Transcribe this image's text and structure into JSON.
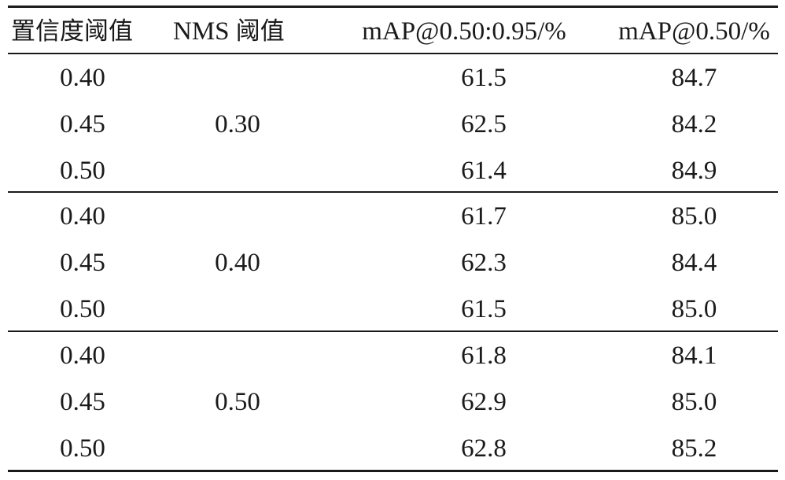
{
  "table": {
    "headers": {
      "conf_threshold": "置信度阈值",
      "nms_prefix": "NMS",
      "nms_suffix": "阈值",
      "map_50_95": "mAP@0.50:0.95/%",
      "map_50": "mAP@0.50/%"
    },
    "groups": [
      {
        "nms": "0.30",
        "rows": [
          {
            "conf": "0.40",
            "map5095": "61.5",
            "map50": "84.7"
          },
          {
            "conf": "0.45",
            "map5095": "62.5",
            "map50": "84.2"
          },
          {
            "conf": "0.50",
            "map5095": "61.4",
            "map50": "84.9"
          }
        ]
      },
      {
        "nms": "0.40",
        "rows": [
          {
            "conf": "0.40",
            "map5095": "61.7",
            "map50": "85.0"
          },
          {
            "conf": "0.45",
            "map5095": "62.3",
            "map50": "84.4"
          },
          {
            "conf": "0.50",
            "map5095": "61.5",
            "map50": "85.0"
          }
        ]
      },
      {
        "nms": "0.50",
        "rows": [
          {
            "conf": "0.40",
            "map5095": "61.8",
            "map50": "84.1"
          },
          {
            "conf": "0.45",
            "map5095": "62.9",
            "map50": "85.0"
          },
          {
            "conf": "0.50",
            "map5095": "62.8",
            "map50": "85.2"
          }
        ]
      }
    ]
  }
}
